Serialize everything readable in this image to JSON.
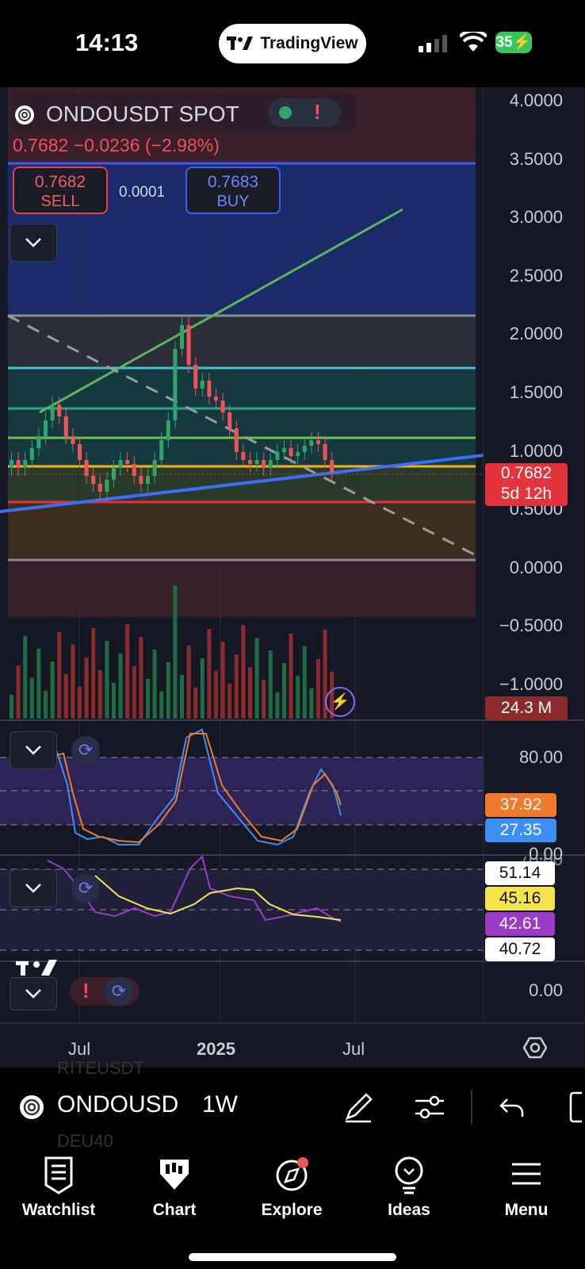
{
  "status": {
    "time": "14:13",
    "battery": "35"
  },
  "app_pill": {
    "label": "TradingView"
  },
  "symbol": {
    "title": "ONDOUSDT SPOT",
    "price_line": "0.7682  −0.0236 (−2.98%)",
    "sell_price": "0.7682",
    "sell_label": "SELL",
    "buy_price": "0.7683",
    "buy_label": "BUY",
    "spread": "0.0001"
  },
  "price_axis": {
    "ticks": [
      "4.0000",
      "3.5000",
      "3.0000",
      "2.5000",
      "2.0000",
      "1.5000",
      "1.0000",
      "0.5000",
      "0.0000",
      "−0.5000",
      "−1.0000"
    ],
    "current_price": "0.7682",
    "countdown": "5d 12h",
    "volume": "24.3 M"
  },
  "stoch_axis": {
    "tick_top": "80.00",
    "tick_bottom": "0.00",
    "k": "37.92",
    "d": "27.35"
  },
  "rsi_axis": {
    "values": [
      "51.14",
      "45.16",
      "42.61",
      "40.72"
    ],
    "cut_tick": "70.00"
  },
  "extra_pane": {
    "tick": "0.00"
  },
  "time_axis": {
    "labels": [
      "Jul",
      "2025",
      "Jul"
    ]
  },
  "toolbar": {
    "symbol": "ONDOUSDT",
    "interval": "1W",
    "ghost_symbol_top": "RITEUSDT",
    "ghost_symbol_bottom": "DEU40"
  },
  "tabs": [
    {
      "label": "Watchlist",
      "icon": "watchlist-icon"
    },
    {
      "label": "Chart",
      "icon": "chart-icon"
    },
    {
      "label": "Explore",
      "icon": "explore-icon"
    },
    {
      "label": "Ideas",
      "icon": "ideas-icon"
    },
    {
      "label": "Menu",
      "icon": "menu-icon"
    }
  ],
  "colors": {
    "down": "#f0525a",
    "up": "#2ea66a",
    "buy": "#3e5ef5",
    "accent_blue": "#3d6ff5",
    "stoch_k": "#f07a2b",
    "stoch_d": "#3e8ff5",
    "rsi_line": "#f5e34d",
    "rsi_purple": "#9c3bc9"
  }
}
